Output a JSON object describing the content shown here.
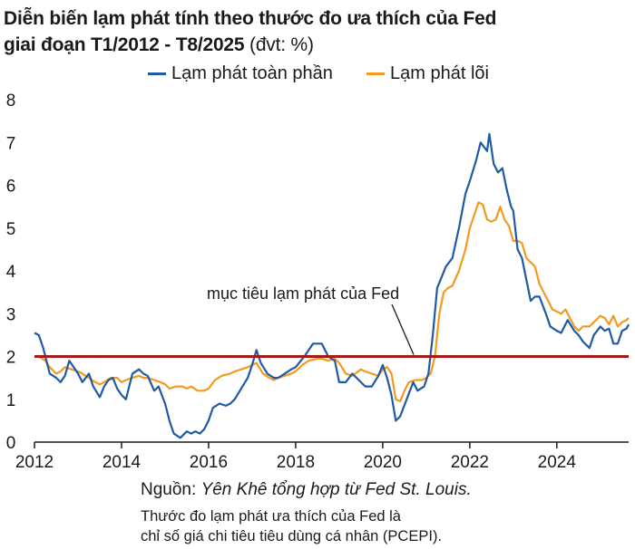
{
  "header": {
    "title_line1": "Diễn biến lạm phát tính theo thước đo ưa thích của Fed",
    "title_line2": "giai đoạn T1/2012 - T8/2025",
    "unit": "(đvt: %)"
  },
  "colors": {
    "headline": "#1f5aa6",
    "core": "#f39a1e",
    "target": "#a31a1a",
    "axis": "#1a1a1a"
  },
  "footer": {
    "source_prefix": "Nguồn:",
    "source_text": "Yên Khê tổng hợp từ Fed St. Louis.",
    "note_line1": "Thước đo lạm phát ưa thích của Fed là",
    "note_line2": "chỉ số giá chi tiêu tiêu dùng cá nhân (PCEPI)."
  },
  "chart_data": {
    "type": "line",
    "title": "Diễn biến lạm phát tính theo thước đo ưa thích của Fed giai đoạn T1/2012 - T8/2025",
    "xlabel": "",
    "ylabel": "%",
    "xlim": [
      2012.0,
      2025.65
    ],
    "ylim": [
      0,
      8
    ],
    "yticks": [
      0,
      1,
      2,
      3,
      4,
      5,
      6,
      7,
      8
    ],
    "xticks": [
      2012,
      2014,
      2016,
      2018,
      2020,
      2022,
      2024
    ],
    "legend_position": "top",
    "target": {
      "value": 2,
      "label": "mục tiêu lạm phát của Fed"
    },
    "series": [
      {
        "name": "Lạm phát toàn phần",
        "color": "#1f5aa6",
        "points": [
          [
            2012.0,
            2.55
          ],
          [
            2012.1,
            2.5
          ],
          [
            2012.2,
            2.2
          ],
          [
            2012.35,
            1.6
          ],
          [
            2012.5,
            1.5
          ],
          [
            2012.6,
            1.4
          ],
          [
            2012.7,
            1.55
          ],
          [
            2012.8,
            1.9
          ],
          [
            2012.9,
            1.75
          ],
          [
            2013.0,
            1.6
          ],
          [
            2013.1,
            1.4
          ],
          [
            2013.25,
            1.6
          ],
          [
            2013.35,
            1.3
          ],
          [
            2013.5,
            1.05
          ],
          [
            2013.6,
            1.3
          ],
          [
            2013.7,
            1.45
          ],
          [
            2013.8,
            1.5
          ],
          [
            2013.9,
            1.25
          ],
          [
            2014.0,
            1.1
          ],
          [
            2014.1,
            1.0
          ],
          [
            2014.25,
            1.6
          ],
          [
            2014.4,
            1.7
          ],
          [
            2014.5,
            1.6
          ],
          [
            2014.6,
            1.55
          ],
          [
            2014.75,
            1.2
          ],
          [
            2014.85,
            1.3
          ],
          [
            2015.0,
            0.9
          ],
          [
            2015.1,
            0.5
          ],
          [
            2015.2,
            0.2
          ],
          [
            2015.35,
            0.1
          ],
          [
            2015.5,
            0.25
          ],
          [
            2015.6,
            0.2
          ],
          [
            2015.7,
            0.25
          ],
          [
            2015.8,
            0.2
          ],
          [
            2015.9,
            0.3
          ],
          [
            2016.0,
            0.5
          ],
          [
            2016.1,
            0.8
          ],
          [
            2016.25,
            0.9
          ],
          [
            2016.4,
            0.85
          ],
          [
            2016.5,
            0.9
          ],
          [
            2016.6,
            1.0
          ],
          [
            2016.75,
            1.25
          ],
          [
            2016.9,
            1.5
          ],
          [
            2017.0,
            1.8
          ],
          [
            2017.1,
            2.15
          ],
          [
            2017.2,
            1.85
          ],
          [
            2017.35,
            1.6
          ],
          [
            2017.5,
            1.5
          ],
          [
            2017.6,
            1.5
          ],
          [
            2017.75,
            1.6
          ],
          [
            2017.9,
            1.7
          ],
          [
            2018.0,
            1.75
          ],
          [
            2018.2,
            2.0
          ],
          [
            2018.4,
            2.3
          ],
          [
            2018.5,
            2.3
          ],
          [
            2018.6,
            2.3
          ],
          [
            2018.75,
            2.0
          ],
          [
            2018.9,
            1.9
          ],
          [
            2019.0,
            1.4
          ],
          [
            2019.15,
            1.4
          ],
          [
            2019.3,
            1.6
          ],
          [
            2019.5,
            1.4
          ],
          [
            2019.6,
            1.3
          ],
          [
            2019.75,
            1.3
          ],
          [
            2019.9,
            1.55
          ],
          [
            2020.0,
            1.8
          ],
          [
            2020.1,
            1.5
          ],
          [
            2020.2,
            1.1
          ],
          [
            2020.3,
            0.5
          ],
          [
            2020.4,
            0.6
          ],
          [
            2020.55,
            1.0
          ],
          [
            2020.7,
            1.4
          ],
          [
            2020.8,
            1.2
          ],
          [
            2020.95,
            1.3
          ],
          [
            2021.05,
            1.6
          ],
          [
            2021.15,
            2.5
          ],
          [
            2021.25,
            3.6
          ],
          [
            2021.45,
            4.1
          ],
          [
            2021.6,
            4.3
          ],
          [
            2021.75,
            5.0
          ],
          [
            2021.9,
            5.8
          ],
          [
            2022.0,
            6.1
          ],
          [
            2022.15,
            6.6
          ],
          [
            2022.25,
            7.0
          ],
          [
            2022.4,
            6.8
          ],
          [
            2022.45,
            7.2
          ],
          [
            2022.55,
            6.5
          ],
          [
            2022.65,
            6.3
          ],
          [
            2022.75,
            6.4
          ],
          [
            2022.85,
            5.9
          ],
          [
            2022.95,
            5.5
          ],
          [
            2023.0,
            5.4
          ],
          [
            2023.1,
            4.5
          ],
          [
            2023.2,
            4.3
          ],
          [
            2023.3,
            3.8
          ],
          [
            2023.4,
            3.3
          ],
          [
            2023.5,
            3.4
          ],
          [
            2023.6,
            3.4
          ],
          [
            2023.75,
            3.0
          ],
          [
            2023.85,
            2.7
          ],
          [
            2024.0,
            2.6
          ],
          [
            2024.1,
            2.55
          ],
          [
            2024.25,
            2.85
          ],
          [
            2024.4,
            2.6
          ],
          [
            2024.5,
            2.5
          ],
          [
            2024.6,
            2.35
          ],
          [
            2024.75,
            2.2
          ],
          [
            2024.85,
            2.5
          ],
          [
            2025.0,
            2.7
          ],
          [
            2025.1,
            2.6
          ],
          [
            2025.2,
            2.65
          ],
          [
            2025.3,
            2.3
          ],
          [
            2025.4,
            2.3
          ],
          [
            2025.5,
            2.6
          ],
          [
            2025.6,
            2.65
          ],
          [
            2025.65,
            2.75
          ]
        ]
      },
      {
        "name": "Lạm phát lõi",
        "color": "#f39a1e",
        "points": [
          [
            2012.0,
            2.0
          ],
          [
            2012.1,
            2.0
          ],
          [
            2012.25,
            1.9
          ],
          [
            2012.35,
            1.75
          ],
          [
            2012.5,
            1.6
          ],
          [
            2012.6,
            1.65
          ],
          [
            2012.7,
            1.75
          ],
          [
            2012.85,
            1.7
          ],
          [
            2013.0,
            1.65
          ],
          [
            2013.1,
            1.6
          ],
          [
            2013.25,
            1.5
          ],
          [
            2013.4,
            1.4
          ],
          [
            2013.5,
            1.35
          ],
          [
            2013.6,
            1.4
          ],
          [
            2013.75,
            1.5
          ],
          [
            2013.9,
            1.5
          ],
          [
            2014.0,
            1.4
          ],
          [
            2014.1,
            1.45
          ],
          [
            2014.25,
            1.5
          ],
          [
            2014.4,
            1.55
          ],
          [
            2014.5,
            1.5
          ],
          [
            2014.6,
            1.5
          ],
          [
            2014.75,
            1.45
          ],
          [
            2014.9,
            1.4
          ],
          [
            2015.0,
            1.35
          ],
          [
            2015.1,
            1.25
          ],
          [
            2015.25,
            1.3
          ],
          [
            2015.4,
            1.3
          ],
          [
            2015.5,
            1.25
          ],
          [
            2015.6,
            1.3
          ],
          [
            2015.75,
            1.2
          ],
          [
            2015.9,
            1.2
          ],
          [
            2016.0,
            1.25
          ],
          [
            2016.15,
            1.45
          ],
          [
            2016.3,
            1.55
          ],
          [
            2016.5,
            1.6
          ],
          [
            2016.6,
            1.65
          ],
          [
            2016.75,
            1.7
          ],
          [
            2016.9,
            1.75
          ],
          [
            2017.0,
            1.8
          ],
          [
            2017.1,
            1.85
          ],
          [
            2017.25,
            1.6
          ],
          [
            2017.4,
            1.5
          ],
          [
            2017.5,
            1.45
          ],
          [
            2017.6,
            1.5
          ],
          [
            2017.75,
            1.55
          ],
          [
            2017.9,
            1.6
          ],
          [
            2018.0,
            1.65
          ],
          [
            2018.15,
            1.8
          ],
          [
            2018.3,
            1.9
          ],
          [
            2018.5,
            1.95
          ],
          [
            2018.6,
            1.95
          ],
          [
            2018.75,
            1.9
          ],
          [
            2018.9,
            1.95
          ],
          [
            2019.0,
            1.85
          ],
          [
            2019.15,
            1.6
          ],
          [
            2019.3,
            1.55
          ],
          [
            2019.5,
            1.7
          ],
          [
            2019.6,
            1.65
          ],
          [
            2019.75,
            1.6
          ],
          [
            2019.9,
            1.55
          ],
          [
            2020.0,
            1.7
          ],
          [
            2020.1,
            1.75
          ],
          [
            2020.2,
            1.6
          ],
          [
            2020.3,
            1.0
          ],
          [
            2020.4,
            0.95
          ],
          [
            2020.5,
            1.2
          ],
          [
            2020.6,
            1.4
          ],
          [
            2020.75,
            1.45
          ],
          [
            2020.9,
            1.45
          ],
          [
            2021.0,
            1.5
          ],
          [
            2021.1,
            1.6
          ],
          [
            2021.2,
            2.0
          ],
          [
            2021.3,
            3.0
          ],
          [
            2021.4,
            3.5
          ],
          [
            2021.5,
            3.6
          ],
          [
            2021.6,
            3.65
          ],
          [
            2021.75,
            4.0
          ],
          [
            2021.9,
            4.5
          ],
          [
            2022.0,
            5.0
          ],
          [
            2022.1,
            5.3
          ],
          [
            2022.2,
            5.6
          ],
          [
            2022.3,
            5.55
          ],
          [
            2022.4,
            5.2
          ],
          [
            2022.5,
            5.15
          ],
          [
            2022.6,
            5.2
          ],
          [
            2022.7,
            5.5
          ],
          [
            2022.8,
            5.2
          ],
          [
            2022.9,
            5.05
          ],
          [
            2023.0,
            4.7
          ],
          [
            2023.1,
            4.7
          ],
          [
            2023.2,
            4.65
          ],
          [
            2023.3,
            4.3
          ],
          [
            2023.4,
            4.2
          ],
          [
            2023.5,
            4.1
          ],
          [
            2023.6,
            3.7
          ],
          [
            2023.75,
            3.4
          ],
          [
            2023.9,
            3.1
          ],
          [
            2024.0,
            3.05
          ],
          [
            2024.1,
            3.0
          ],
          [
            2024.2,
            3.1
          ],
          [
            2024.3,
            2.9
          ],
          [
            2024.4,
            2.7
          ],
          [
            2024.5,
            2.6
          ],
          [
            2024.6,
            2.7
          ],
          [
            2024.75,
            2.7
          ],
          [
            2024.85,
            2.8
          ],
          [
            2025.0,
            2.95
          ],
          [
            2025.1,
            2.9
          ],
          [
            2025.2,
            2.75
          ],
          [
            2025.3,
            2.95
          ],
          [
            2025.4,
            2.7
          ],
          [
            2025.5,
            2.8
          ],
          [
            2025.6,
            2.85
          ],
          [
            2025.65,
            2.9
          ]
        ]
      }
    ]
  }
}
